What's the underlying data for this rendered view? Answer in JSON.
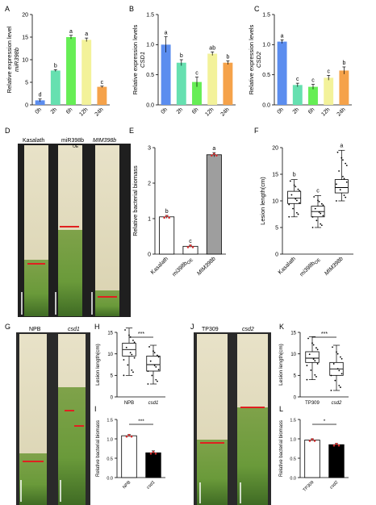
{
  "panel_letters": {
    "A": "A",
    "B": "B",
    "C": "C",
    "D": "D",
    "E": "E",
    "F": "F",
    "G": "G",
    "H": "H",
    "I": "I",
    "J": "J",
    "K": "K",
    "L": "L"
  },
  "photo_labels": {
    "d_1": "Kasalath",
    "d_2": "miR398b",
    "d_2_sub": "OE",
    "d_3": "MIM398b",
    "g_1": "NPB",
    "g_2": "csd1",
    "j_1": "TP309",
    "j_2": "csd2"
  },
  "chart_data": [
    {
      "panel": "A",
      "type": "bar",
      "ylabel": "Relative expression level miR398b",
      "ylabel_lines": [
        "Relative expression level",
        "miR398b"
      ],
      "categories": [
        "0h",
        "2h",
        "6h",
        "12h",
        "24h"
      ],
      "values": [
        1.0,
        7.6,
        15.0,
        14.4,
        4.0
      ],
      "errors": [
        0.3,
        0.2,
        0.4,
        0.4,
        0.15
      ],
      "letters": [
        "d",
        "b",
        "a",
        "a",
        "c"
      ],
      "ylim": [
        0,
        20
      ],
      "yticks": [
        "0",
        "5",
        "10",
        "15",
        "20"
      ],
      "colors": [
        "#5b8def",
        "#66e0b0",
        "#66ee55",
        "#f3f29a",
        "#f5a24a"
      ]
    },
    {
      "panel": "B",
      "type": "bar",
      "ylabel": "Relative expression levels CSD1",
      "ylabel_lines": [
        "Relative expression levels",
        "CSD1"
      ],
      "categories": [
        "0h",
        "2h",
        "6h",
        "12h",
        "24h"
      ],
      "values": [
        1.0,
        0.7,
        0.38,
        0.85,
        0.7
      ],
      "errors": [
        0.13,
        0.05,
        0.08,
        0.03,
        0.03
      ],
      "letters": [
        "a",
        "b",
        "c",
        "ab",
        "b"
      ],
      "ylim": [
        0,
        1.5
      ],
      "yticks": [
        "0.0",
        "0.5",
        "1.0",
        "1.5"
      ],
      "colors": [
        "#5b8def",
        "#66e0b0",
        "#66ee55",
        "#f3f29a",
        "#f5a24a"
      ]
    },
    {
      "panel": "C",
      "type": "bar",
      "ylabel": "Relative expression levels CSD2",
      "ylabel_lines": [
        "Relative expression levels",
        "CSD2"
      ],
      "categories": [
        "0h",
        "2h",
        "6h",
        "12h",
        "24h"
      ],
      "values": [
        1.05,
        0.33,
        0.3,
        0.45,
        0.57
      ],
      "errors": [
        0.03,
        0.03,
        0.04,
        0.04,
        0.06
      ],
      "letters": [
        "a",
        "c",
        "c",
        "c",
        "b"
      ],
      "ylim": [
        0,
        1.5
      ],
      "yticks": [
        "0.0",
        "0.5",
        "1.0",
        "1.5"
      ],
      "colors": [
        "#5b8def",
        "#66e0b0",
        "#66ee55",
        "#f3f29a",
        "#f5a24a"
      ]
    },
    {
      "panel": "E",
      "type": "bar",
      "ylabel": "Relative bacterial biomass",
      "categories": [
        "Kasalath",
        "mi398b",
        "MIM398b"
      ],
      "category_sub": [
        "",
        "OE",
        ""
      ],
      "values": [
        1.05,
        0.22,
        2.8
      ],
      "errors": [
        0.04,
        0.03,
        0.06
      ],
      "letters": [
        "b",
        "c",
        "a"
      ],
      "ylim": [
        0,
        3
      ],
      "yticks": [
        "0",
        "1",
        "2",
        "3"
      ],
      "colors": [
        "#ffffff",
        "#ffffff",
        "#9e9e9e"
      ]
    },
    {
      "panel": "F",
      "type": "box",
      "ylabel": "Lesion length(cm)",
      "categories": [
        "Kasalath",
        "mi398b",
        "MIM398b"
      ],
      "category_sub": [
        "",
        "OE",
        ""
      ],
      "boxes": [
        {
          "min": 7,
          "q1": 9.5,
          "median": 10.5,
          "q3": 11.8,
          "max": 14
        },
        {
          "min": 5,
          "q1": 7,
          "median": 8,
          "q3": 9,
          "max": 11
        },
        {
          "min": 10,
          "q1": 11.5,
          "median": 12.5,
          "q3": 14,
          "max": 19.5
        }
      ],
      "letters": [
        "b",
        "c",
        "a"
      ],
      "ylim": [
        0,
        20
      ],
      "yticks": [
        "0",
        "5",
        "10",
        "15",
        "20"
      ]
    },
    {
      "panel": "H",
      "type": "box",
      "ylabel": "Lesion length(cm)",
      "categories": [
        "NPB",
        "csd1"
      ],
      "boxes": [
        {
          "min": 5,
          "q1": 9.5,
          "median": 11,
          "q3": 12.5,
          "max": 16
        },
        {
          "min": 3,
          "q1": 6,
          "median": 7.5,
          "q3": 9.5,
          "max": 12
        }
      ],
      "significance": "***",
      "ylim": [
        0,
        15
      ],
      "yticks": [
        "0",
        "5",
        "10",
        "15"
      ]
    },
    {
      "panel": "I",
      "type": "bar",
      "ylabel": "Relative bacterial biomass",
      "categories": [
        "NPB",
        "csd1"
      ],
      "values": [
        1.08,
        0.64
      ],
      "errors": [
        0.03,
        0.05
      ],
      "significance": "***",
      "ylim": [
        0,
        1.5
      ],
      "yticks": [
        "0.0",
        "0.5",
        "1.0",
        "1.5"
      ],
      "colors": [
        "#ffffff",
        "#000000"
      ]
    },
    {
      "panel": "K",
      "type": "box",
      "ylabel": "Lesion length(cm)",
      "categories": [
        "TP309",
        "csd2"
      ],
      "boxes": [
        {
          "min": 4,
          "q1": 8,
          "median": 9,
          "q3": 10.5,
          "max": 14
        },
        {
          "min": 1.5,
          "q1": 5,
          "median": 6.5,
          "q3": 8,
          "max": 12
        }
      ],
      "significance": "***",
      "ylim": [
        0,
        15
      ],
      "yticks": [
        "0",
        "5",
        "10",
        "15"
      ]
    },
    {
      "panel": "L",
      "type": "bar",
      "ylabel": "Relative bacterial biomass",
      "categories": [
        "TP309",
        "csd2"
      ],
      "values": [
        0.97,
        0.85
      ],
      "errors": [
        0.03,
        0.03
      ],
      "significance": "*",
      "ylim": [
        0,
        1.5
      ],
      "yticks": [
        "0.0",
        "0.5",
        "1.0",
        "1.5"
      ],
      "colors": [
        "#ffffff",
        "#000000"
      ]
    }
  ]
}
